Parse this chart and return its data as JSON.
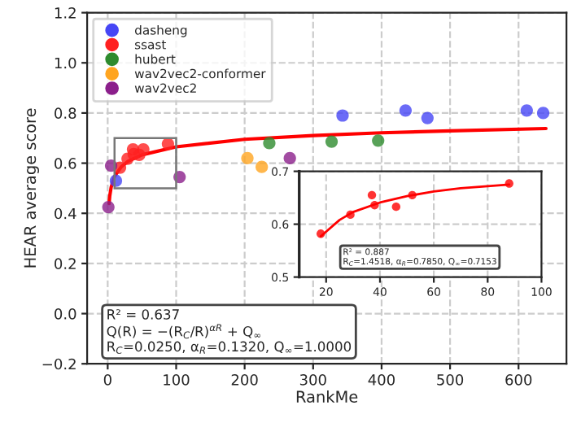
{
  "chart_data": [
    {
      "type": "scatter",
      "xlabel": "RankMe",
      "ylabel": "HEAR average score",
      "xlim": [
        -30,
        670
      ],
      "ylim": [
        -0.2,
        1.2
      ],
      "xticks": [
        0,
        100,
        200,
        300,
        400,
        500,
        600
      ],
      "yticks": [
        {
          "value": -0.2,
          "label": "−0.2"
        },
        {
          "value": 0.0,
          "label": "0.0"
        },
        0.2,
        0.4,
        0.6,
        0.8,
        {
          "value": 1.0,
          "label": "1.0"
        },
        1.2
      ],
      "grid": true,
      "legend": "top left",
      "marker": "circle",
      "series": [
        {
          "name": "dasheng",
          "color": "#4646f5",
          "x": [
            12,
            343,
            435,
            467,
            612,
            636
          ],
          "values": [
            0.53,
            0.79,
            0.81,
            0.78,
            0.81,
            0.8
          ]
        },
        {
          "name": "ssast",
          "color": "#ff2020",
          "x": [
            18,
            29,
            37,
            38,
            46,
            52,
            88
          ],
          "values": [
            0.582,
            0.618,
            0.655,
            0.636,
            0.633,
            0.655,
            0.677
          ]
        },
        {
          "name": "hubert",
          "color": "#2e8b2e",
          "x": [
            236,
            327,
            395
          ],
          "values": [
            0.68,
            0.686,
            0.69
          ]
        },
        {
          "name": "wav2vec2-conformer",
          "color": "#ffa520",
          "x": [
            204,
            225
          ],
          "values": [
            0.62,
            0.585
          ]
        },
        {
          "name": "wav2vec2",
          "color": "#8b1f8b",
          "x": [
            1,
            5,
            105,
            266
          ],
          "values": [
            0.425,
            0.59,
            0.545,
            0.62
          ]
        },
        {
          "type": "line",
          "marker": "none",
          "color": "#ff0000",
          "x": [
            2,
            3,
            5,
            10,
            20,
            30,
            50,
            100,
            200,
            300,
            400,
            500,
            640
          ],
          "values": [
            0.439,
            0.469,
            0.503,
            0.547,
            0.586,
            0.608,
            0.633,
            0.665,
            0.695,
            0.71,
            0.721,
            0.729,
            0.738
          ]
        }
      ],
      "annotations": [
        "R² = 0.637",
        "Q(R) = −(R$_{C}$/R)$^{αR}$ + Q$_{∞}$",
        "R$_{C}$=0.0250, α$_{R}$=0.1320, Q$_{∞}$=1.0000"
      ]
    },
    {
      "type": "scatter",
      "xlim": [
        10,
        100
      ],
      "ylim": [
        0.5,
        0.7
      ],
      "xticks": [
        20,
        40,
        60,
        80,
        100
      ],
      "yticks": [
        0.5,
        0.6,
        0.7
      ],
      "grid": true,
      "marker": "circle",
      "series": [
        {
          "color": "#ff0000",
          "x": [
            18,
            29,
            37,
            38,
            46,
            52,
            88
          ],
          "values": [
            0.582,
            0.618,
            0.655,
            0.636,
            0.633,
            0.655,
            0.677
          ]
        },
        {
          "type": "line",
          "marker": "none",
          "color": "#ff0000",
          "x": [
            18,
            25,
            30,
            40,
            50,
            60,
            70,
            80,
            88
          ],
          "values": [
            0.577,
            0.608,
            0.623,
            0.641,
            0.653,
            0.662,
            0.668,
            0.672,
            0.675
          ]
        }
      ],
      "annotations": [
        "R² = 0.887",
        "R$_{C}$=1.4518, α$_{R}$=0.7850, Q$_{∞}$=0.7153"
      ]
    }
  ]
}
